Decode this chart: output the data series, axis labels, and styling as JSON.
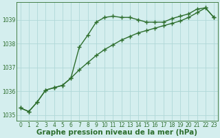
{
  "series1": {
    "x": [
      0,
      1,
      2,
      3,
      4,
      5,
      6,
      7,
      8,
      9,
      10,
      11,
      12,
      13,
      14,
      15,
      16,
      17,
      18,
      19,
      20,
      21,
      22,
      23
    ],
    "y": [
      1035.3,
      1035.15,
      1035.55,
      1036.05,
      1036.15,
      1036.25,
      1036.55,
      1037.85,
      1038.35,
      1038.9,
      1039.1,
      1039.15,
      1039.1,
      1039.1,
      1039.0,
      1038.9,
      1038.9,
      1038.9,
      1039.05,
      1039.15,
      1039.25,
      1039.45,
      1039.5,
      1039.1
    ]
  },
  "series2": {
    "x": [
      0,
      1,
      2,
      3,
      4,
      5,
      6,
      7,
      8,
      9,
      10,
      11,
      12,
      13,
      14,
      15,
      16,
      17,
      18,
      19,
      20,
      21,
      22,
      23
    ],
    "y": [
      1035.3,
      1035.15,
      1035.55,
      1036.05,
      1036.15,
      1036.25,
      1036.55,
      1036.9,
      1037.2,
      1037.5,
      1037.75,
      1037.95,
      1038.15,
      1038.3,
      1038.45,
      1038.55,
      1038.65,
      1038.75,
      1038.85,
      1038.95,
      1039.1,
      1039.3,
      1039.5,
      1039.1
    ]
  },
  "bg_color": "#d4eeee",
  "line_color": "#2d6e2d",
  "grid_color": "#b0d8d8",
  "xlabel": "Graphe pression niveau de la mer (hPa)",
  "xlabel_color": "#2d6e2d",
  "ylim": [
    1034.75,
    1039.75
  ],
  "xlim": [
    -0.5,
    23.5
  ],
  "yticks": [
    1035,
    1036,
    1037,
    1038,
    1039
  ],
  "xticks": [
    0,
    1,
    2,
    3,
    4,
    5,
    6,
    7,
    8,
    9,
    10,
    11,
    12,
    13,
    14,
    15,
    16,
    17,
    18,
    19,
    20,
    21,
    22,
    23
  ],
  "marker": "+",
  "markersize": 4,
  "linewidth": 1.0,
  "tick_fontsize": 5.5,
  "xlabel_fontsize": 7.5
}
